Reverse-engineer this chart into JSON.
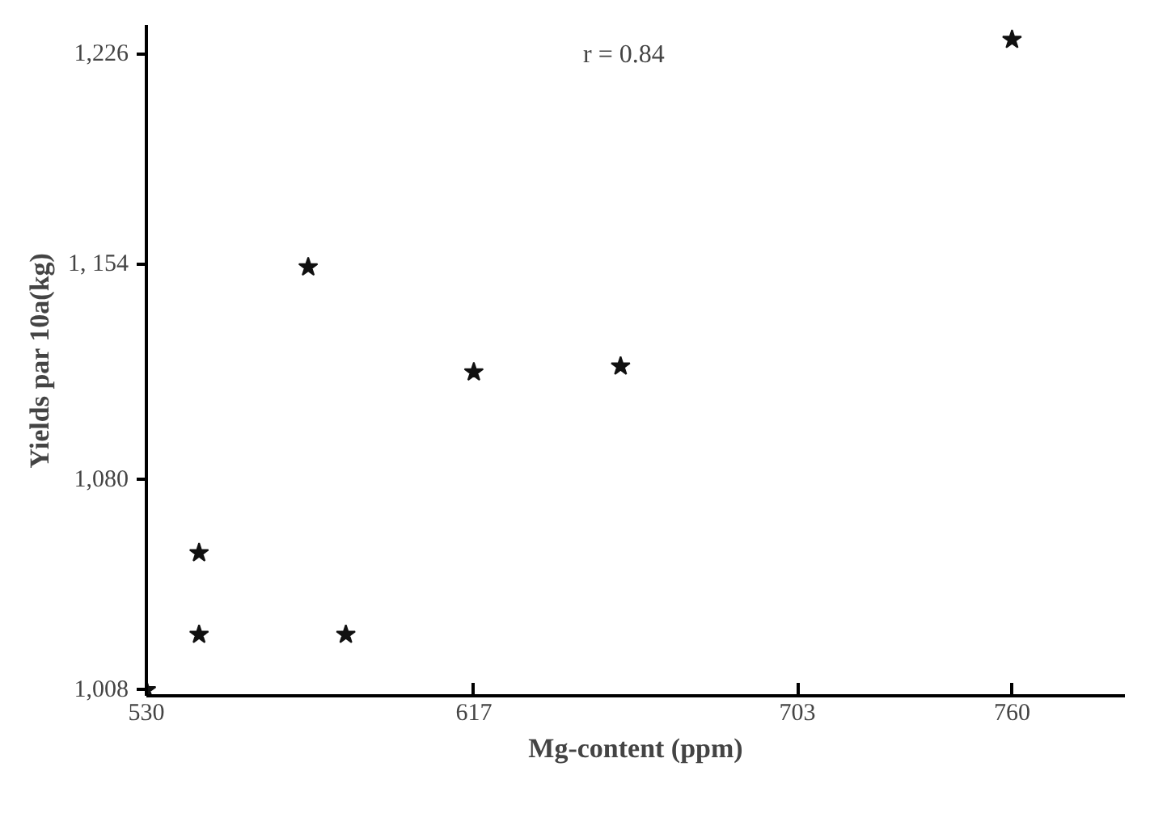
{
  "chart_data": {
    "type": "scatter",
    "xlabel": "Mg-content (ppm)",
    "ylabel": "Yields par 10a(kg)",
    "x": [
      530,
      544,
      544,
      573,
      583,
      617,
      656,
      760
    ],
    "values": [
      1008,
      1055,
      1027,
      1153,
      1027,
      1117,
      1119,
      1231
    ],
    "color": "#111111",
    "marker": "star",
    "grid": false,
    "xlim": [
      530,
      790
    ],
    "ylim": [
      1006,
      1236
    ],
    "xticks": [
      530,
      617,
      703,
      760
    ],
    "yticks": [
      {
        "value": 1008,
        "label": "1,008"
      },
      {
        "value": 1080,
        "label": "1,080"
      },
      {
        "value": 1154,
        "label": "1, 154"
      },
      {
        "value": 1226,
        "label": "1,226"
      }
    ],
    "annotations": [
      "r = 0.84"
    ]
  }
}
